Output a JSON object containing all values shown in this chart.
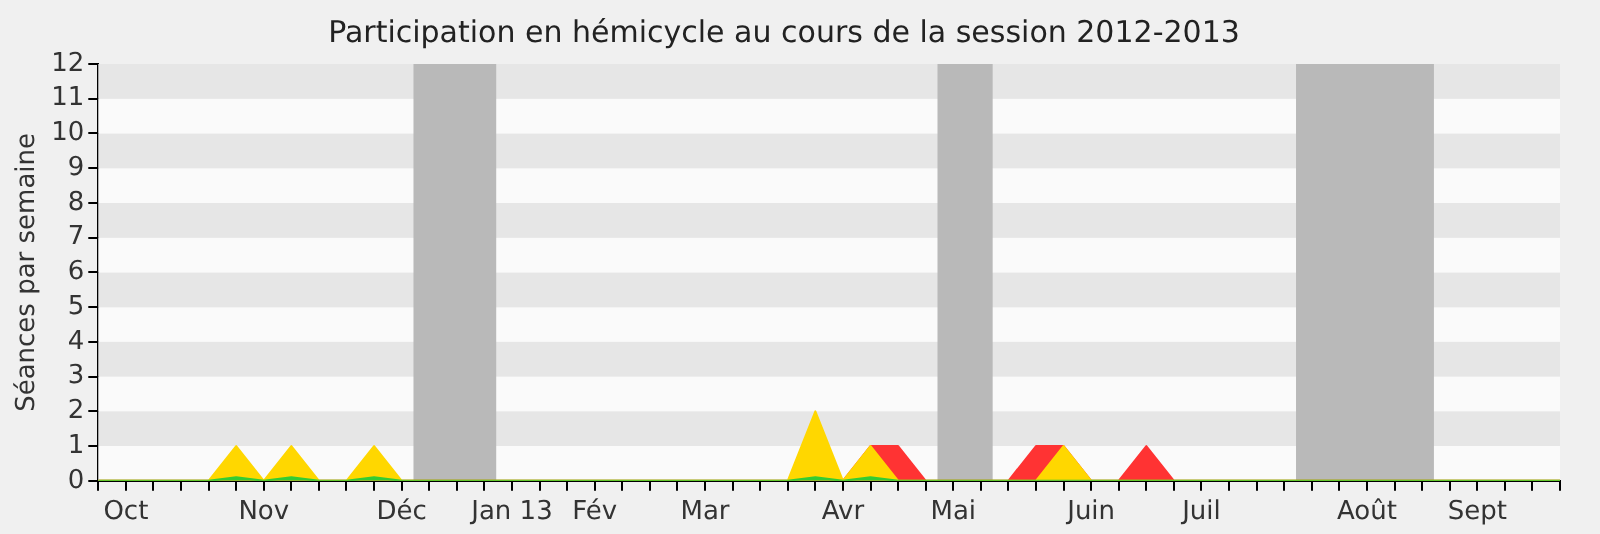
{
  "chart_data": {
    "type": "area",
    "title": "Participation en hémicycle au cours de la session 2012-2013",
    "ylabel": "Séances par semaine",
    "x": [
      "2012-10-01",
      "2012-10-08",
      "2012-10-15",
      "2012-10-22",
      "2012-10-29",
      "2012-11-05",
      "2012-11-12",
      "2012-11-19",
      "2012-11-26",
      "2012-12-03",
      "2012-12-10",
      "2012-12-17",
      "2012-12-24",
      "2012-12-31",
      "2013-01-07",
      "2013-01-14",
      "2013-01-21",
      "2013-01-28",
      "2013-02-04",
      "2013-02-11",
      "2013-02-18",
      "2013-02-25",
      "2013-03-04",
      "2013-03-11",
      "2013-03-18",
      "2013-03-25",
      "2013-04-01",
      "2013-04-08",
      "2013-04-15",
      "2013-04-22",
      "2013-04-29",
      "2013-05-06",
      "2013-05-13",
      "2013-05-20",
      "2013-05-27",
      "2013-06-03",
      "2013-06-10",
      "2013-06-17",
      "2013-06-24",
      "2013-07-01",
      "2013-07-08",
      "2013-07-15",
      "2013-07-22",
      "2013-07-29",
      "2013-08-05",
      "2013-08-12",
      "2013-08-19",
      "2013-08-26",
      "2013-09-02",
      "2013-09-09",
      "2013-09-16",
      "2013-09-23",
      "2013-09-30",
      "2013-10-07"
    ],
    "series": [
      {
        "color": "#ff3333",
        "values": [
          0,
          0,
          0,
          0,
          0,
          0,
          0,
          0,
          0,
          0,
          0,
          0,
          0,
          0,
          0,
          0,
          0,
          0,
          0,
          0,
          0,
          0,
          0,
          0,
          0,
          0,
          0,
          0,
          1,
          1,
          0,
          0,
          0,
          0,
          1,
          1,
          0,
          0,
          1,
          0,
          0,
          0,
          0,
          0,
          0,
          0,
          0,
          0,
          0,
          0,
          0,
          0,
          0,
          0
        ]
      },
      {
        "color": "#ffd700",
        "values": [
          0,
          0,
          0,
          0,
          0,
          1,
          0,
          1,
          0,
          0,
          1,
          0,
          0,
          0,
          0,
          0,
          0,
          0,
          0,
          0,
          0,
          0,
          0,
          0,
          0,
          0,
          2,
          0,
          1,
          0,
          0,
          0,
          0,
          0,
          0,
          1,
          0,
          0,
          0,
          0,
          0,
          0,
          0,
          0,
          0,
          0,
          0,
          0,
          0,
          0,
          0,
          0,
          0,
          0
        ]
      },
      {
        "color": "#33cc33",
        "values": [
          0,
          0,
          0,
          0,
          0,
          0.1,
          0,
          0.1,
          0,
          0,
          0.1,
          0,
          0,
          0,
          0,
          0,
          0,
          0,
          0,
          0,
          0,
          0,
          0,
          0,
          0,
          0,
          0.1,
          0,
          0.1,
          0,
          0,
          0,
          0,
          0,
          0,
          0,
          0,
          0,
          0,
          0,
          0,
          0,
          0,
          0,
          0,
          0,
          0,
          0,
          0,
          0,
          0,
          0,
          0,
          0
        ]
      }
    ],
    "xlim": [
      "2012-10-01",
      "2013-10-07"
    ],
    "xticks": [
      {
        "value": "2012-10-01",
        "label": null
      },
      {
        "value": "2012-10-08",
        "label": "Oct"
      },
      {
        "value": "2012-10-15",
        "label": null
      },
      {
        "value": "2012-10-22",
        "label": null
      },
      {
        "value": "2012-10-29",
        "label": null
      },
      {
        "value": "2012-11-05",
        "label": null
      },
      {
        "value": "2012-11-12",
        "label": "Nov"
      },
      {
        "value": "2012-11-19",
        "label": null
      },
      {
        "value": "2012-11-26",
        "label": null
      },
      {
        "value": "2012-12-03",
        "label": null
      },
      {
        "value": "2012-12-10",
        "label": null
      },
      {
        "value": "2012-12-17",
        "label": "Déc"
      },
      {
        "value": "2012-12-24",
        "label": null
      },
      {
        "value": "2012-12-31",
        "label": null
      },
      {
        "value": "2013-01-07",
        "label": null
      },
      {
        "value": "2013-01-14",
        "label": "Jan 13"
      },
      {
        "value": "2013-01-21",
        "label": null
      },
      {
        "value": "2013-01-28",
        "label": null
      },
      {
        "value": "2013-02-04",
        "label": "Fév"
      },
      {
        "value": "2013-02-11",
        "label": null
      },
      {
        "value": "2013-02-18",
        "label": null
      },
      {
        "value": "2013-02-25",
        "label": null
      },
      {
        "value": "2013-03-04",
        "label": "Mar"
      },
      {
        "value": "2013-03-11",
        "label": null
      },
      {
        "value": "2013-03-18",
        "label": null
      },
      {
        "value": "2013-03-25",
        "label": null
      },
      {
        "value": "2013-04-01",
        "label": null
      },
      {
        "value": "2013-04-08",
        "label": "Avr"
      },
      {
        "value": "2013-04-15",
        "label": null
      },
      {
        "value": "2013-04-22",
        "label": null
      },
      {
        "value": "2013-04-29",
        "label": null
      },
      {
        "value": "2013-05-06",
        "label": "Mai"
      },
      {
        "value": "2013-05-13",
        "label": null
      },
      {
        "value": "2013-05-20",
        "label": null
      },
      {
        "value": "2013-05-27",
        "label": null
      },
      {
        "value": "2013-06-03",
        "label": null
      },
      {
        "value": "2013-06-10",
        "label": "Juin"
      },
      {
        "value": "2013-06-17",
        "label": null
      },
      {
        "value": "2013-06-24",
        "label": null
      },
      {
        "value": "2013-07-01",
        "label": null
      },
      {
        "value": "2013-07-08",
        "label": "Juil"
      },
      {
        "value": "2013-07-15",
        "label": null
      },
      {
        "value": "2013-07-22",
        "label": null
      },
      {
        "value": "2013-07-29",
        "label": null
      },
      {
        "value": "2013-08-05",
        "label": null
      },
      {
        "value": "2013-08-12",
        "label": null
      },
      {
        "value": "2013-08-19",
        "label": "Août"
      },
      {
        "value": "2013-08-26",
        "label": null
      },
      {
        "value": "2013-09-02",
        "label": null
      },
      {
        "value": "2013-09-09",
        "label": null
      },
      {
        "value": "2013-09-16",
        "label": "Sept"
      },
      {
        "value": "2013-09-23",
        "label": null
      },
      {
        "value": "2013-09-30",
        "label": null
      },
      {
        "value": "2013-10-07",
        "label": null
      }
    ],
    "ylim": [
      0,
      12
    ],
    "yticks": [
      0,
      1,
      2,
      3,
      4,
      5,
      6,
      7,
      8,
      9,
      10,
      11,
      12
    ],
    "bands": [
      {
        "axis": "x",
        "from": "2012-12-20",
        "to": "2013-01-10",
        "color": "#b9b9b9"
      },
      {
        "axis": "x",
        "from": "2013-05-02",
        "to": "2013-05-16",
        "color": "#b9b9b9"
      },
      {
        "axis": "x",
        "from": "2013-08-01",
        "to": "2013-09-05",
        "color": "#b9b9b9"
      }
    ]
  }
}
